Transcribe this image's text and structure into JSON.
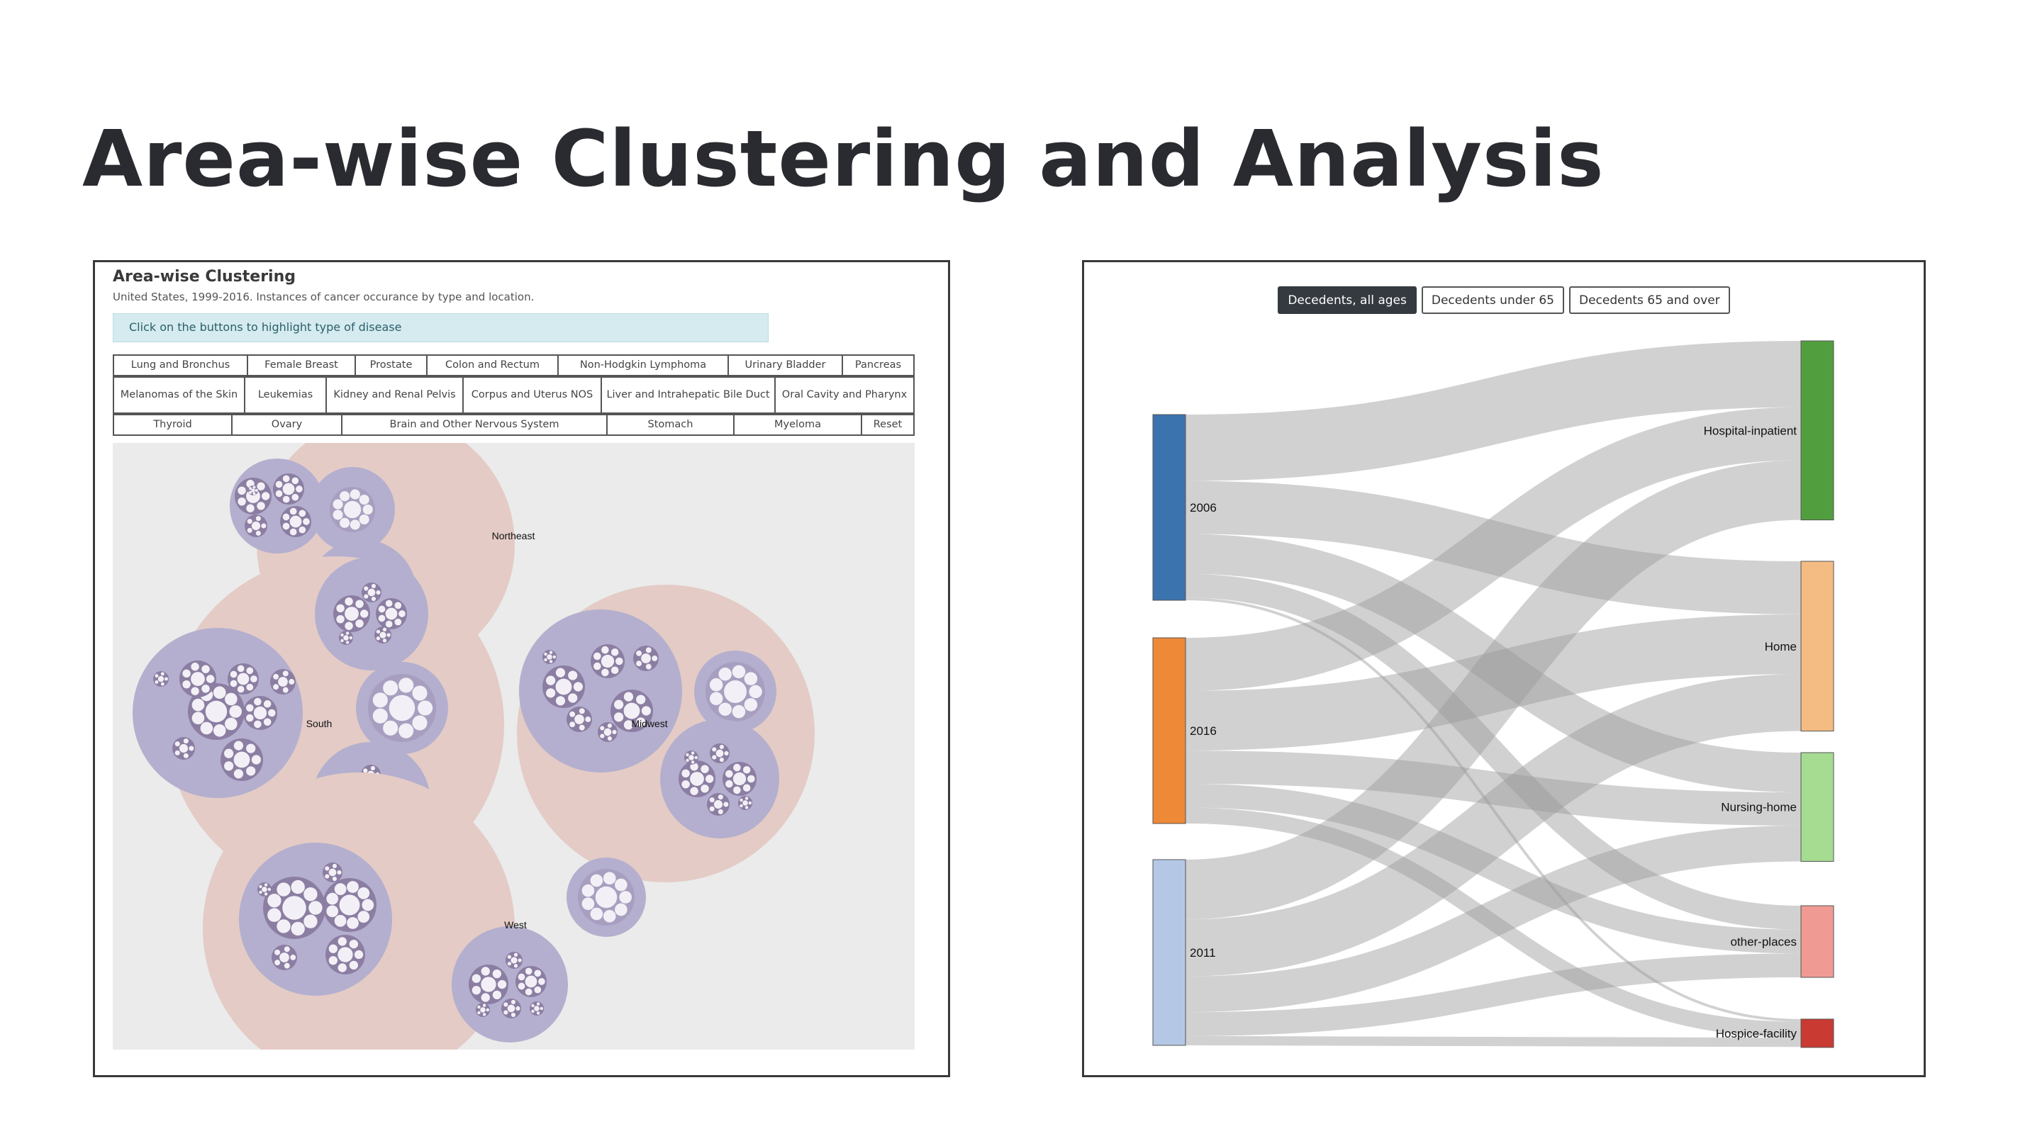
{
  "slide": {
    "title": "Area-wise Clustering and Analysis"
  },
  "left_panel": {
    "heading": "Area-wise Clustering",
    "subtitle": "United States, 1999-2016. Instances of cancer occurance by type and location.",
    "hint": "Click on the buttons to highlight type of disease",
    "button_rows": [
      [
        "Lung and Bronchus",
        "Female Breast",
        "Prostate",
        "Colon and Rectum",
        "Non-Hodgkin Lymphoma",
        "Urinary Bladder",
        "Pancreas"
      ],
      [
        "Melanomas of the Skin",
        "Leukemias",
        "Kidney and Renal Pelvis",
        "Corpus and Uterus NOS",
        "Liver and Intrahepatic Bile Duct",
        "Oral Cavity and Pharynx"
      ],
      [
        "Thyroid",
        "Ovary",
        "Brain and Other Nervous System",
        "Stomach",
        "Myeloma",
        "Reset"
      ]
    ],
    "regions": [
      "Northeast",
      "South",
      "Midwest",
      "West"
    ],
    "colors": {
      "outer": "#e4cbc6",
      "state": "#b4afce",
      "county": "#8c7ea2",
      "leaf": "#f2f0f6"
    }
  },
  "right_panel": {
    "tabs": [
      {
        "label": "Decedents, all ages",
        "active": true
      },
      {
        "label": "Decedents under 65",
        "active": false
      },
      {
        "label": "Decedents 65 and over",
        "active": false
      }
    ]
  },
  "chart_data": {
    "type": "sankey",
    "sources": [
      {
        "name": "2006",
        "color": "#3b73af"
      },
      {
        "name": "2016",
        "color": "#ee8937"
      },
      {
        "name": "2011",
        "color": "#b4c8e6"
      }
    ],
    "targets": [
      {
        "name": "Hospital-inpatient",
        "color": "#519e3e"
      },
      {
        "name": "Home",
        "color": "#f4bc82"
      },
      {
        "name": "Nursing-home",
        "color": "#a6db92"
      },
      {
        "name": "other-places",
        "color": "#ef9b94"
      },
      {
        "name": "Hospice-facility",
        "color": "#c83a32"
      }
    ],
    "links": [
      {
        "source": "2006",
        "target": "Hospital-inpatient",
        "value": 50
      },
      {
        "source": "2006",
        "target": "Home",
        "value": 40
      },
      {
        "source": "2006",
        "target": "Nursing-home",
        "value": 30
      },
      {
        "source": "2006",
        "target": "other-places",
        "value": 18
      },
      {
        "source": "2006",
        "target": "Hospice-facility",
        "value": 2
      },
      {
        "source": "2016",
        "target": "Hospital-inpatient",
        "value": 40
      },
      {
        "source": "2016",
        "target": "Home",
        "value": 45
      },
      {
        "source": "2016",
        "target": "Nursing-home",
        "value": 25
      },
      {
        "source": "2016",
        "target": "other-places",
        "value": 18
      },
      {
        "source": "2016",
        "target": "Hospice-facility",
        "value": 12
      },
      {
        "source": "2011",
        "target": "Hospital-inpatient",
        "value": 45
      },
      {
        "source": "2011",
        "target": "Home",
        "value": 43
      },
      {
        "source": "2011",
        "target": "Nursing-home",
        "value": 27
      },
      {
        "source": "2011",
        "target": "other-places",
        "value": 18
      },
      {
        "source": "2011",
        "target": "Hospice-facility",
        "value": 7
      }
    ],
    "link_color": "#9a9a9a"
  }
}
